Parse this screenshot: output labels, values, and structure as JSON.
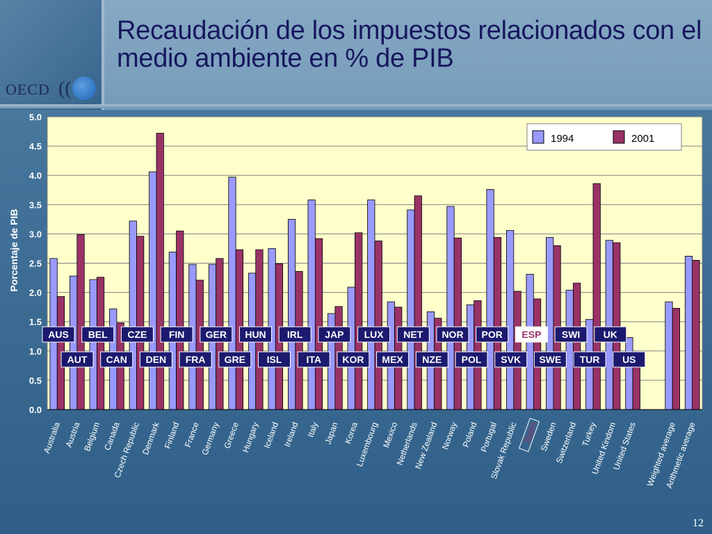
{
  "slide": {
    "title": "Recaudación de los impuestos relacionados con el medio ambiente en % de PIB",
    "logo_text": "OECD",
    "logo_marks": "((",
    "page_number": "12"
  },
  "colors": {
    "bar_1994": "#9999ff",
    "bar_2001": "#993366",
    "plot_bg": "#ffffcc",
    "badge_bg": "#1c1a6e",
    "badge_highlight_bg": "#ffffff",
    "badge_highlight_text": "#993366"
  },
  "chart_data": {
    "type": "bar",
    "ylabel": "Porcentaje de PIB",
    "ylim": [
      0,
      5.0
    ],
    "yticks": [
      "0.0",
      "0.5",
      "1.0",
      "1.5",
      "2.0",
      "2.5",
      "3.0",
      "3.5",
      "4.0",
      "4.5",
      "5.0"
    ],
    "legend_position": "top-right",
    "grid": true,
    "categories": [
      "Australia",
      "Austria",
      "Belgium",
      "Canada",
      "Czech Republic",
      "Denmark",
      "Finland",
      "France",
      "Germany",
      "Greece",
      "Hungary",
      "Iceland",
      "Ireland",
      "Italy",
      "Japan",
      "Korea",
      "Luxembourg",
      "Mexico",
      "Netherlands",
      "New Zealand",
      "Norway",
      "Poland",
      "Portugal",
      "Slovak Republic",
      "Spain",
      "Sweden",
      "Switzerland",
      "Turkey",
      "United Kindom",
      "United States",
      "",
      "Weighted average",
      "Arithmetic average"
    ],
    "highlight_category": "Spain",
    "series": [
      {
        "name": "1994",
        "values": [
          2.58,
          2.28,
          2.22,
          1.72,
          3.22,
          4.06,
          2.69,
          2.48,
          2.48,
          3.97,
          2.33,
          2.75,
          3.25,
          3.58,
          1.64,
          2.09,
          3.58,
          1.84,
          3.41,
          1.67,
          3.47,
          1.79,
          3.76,
          3.06,
          2.31,
          2.94,
          2.04,
          1.54,
          2.89,
          1.23,
          null,
          1.84,
          2.62
        ]
      },
      {
        "name": "2001",
        "values": [
          1.93,
          2.99,
          2.26,
          1.48,
          2.96,
          4.72,
          3.05,
          2.21,
          2.58,
          2.73,
          2.73,
          2.49,
          2.36,
          2.92,
          1.76,
          3.02,
          2.88,
          1.75,
          3.65,
          1.56,
          2.93,
          1.86,
          2.94,
          2.02,
          1.89,
          2.8,
          2.16,
          3.86,
          2.85,
          0.98,
          null,
          1.73,
          2.55
        ]
      }
    ],
    "country_codes_row1": [
      "AUS",
      "BEL",
      "CZE",
      "FIN",
      "GER",
      "HUN",
      "IRL",
      "JAP",
      "LUX",
      "NET",
      "NOR",
      "POR",
      "ESP",
      "SWI",
      "UK"
    ],
    "country_codes_row2": [
      "AUT",
      "CAN",
      "DEN",
      "FRA",
      "GRE",
      "ISL",
      "ITA",
      "KOR",
      "MEX",
      "NZE",
      "POL",
      "SVK",
      "SWE",
      "TUR",
      "US"
    ],
    "highlight_code": "ESP"
  }
}
